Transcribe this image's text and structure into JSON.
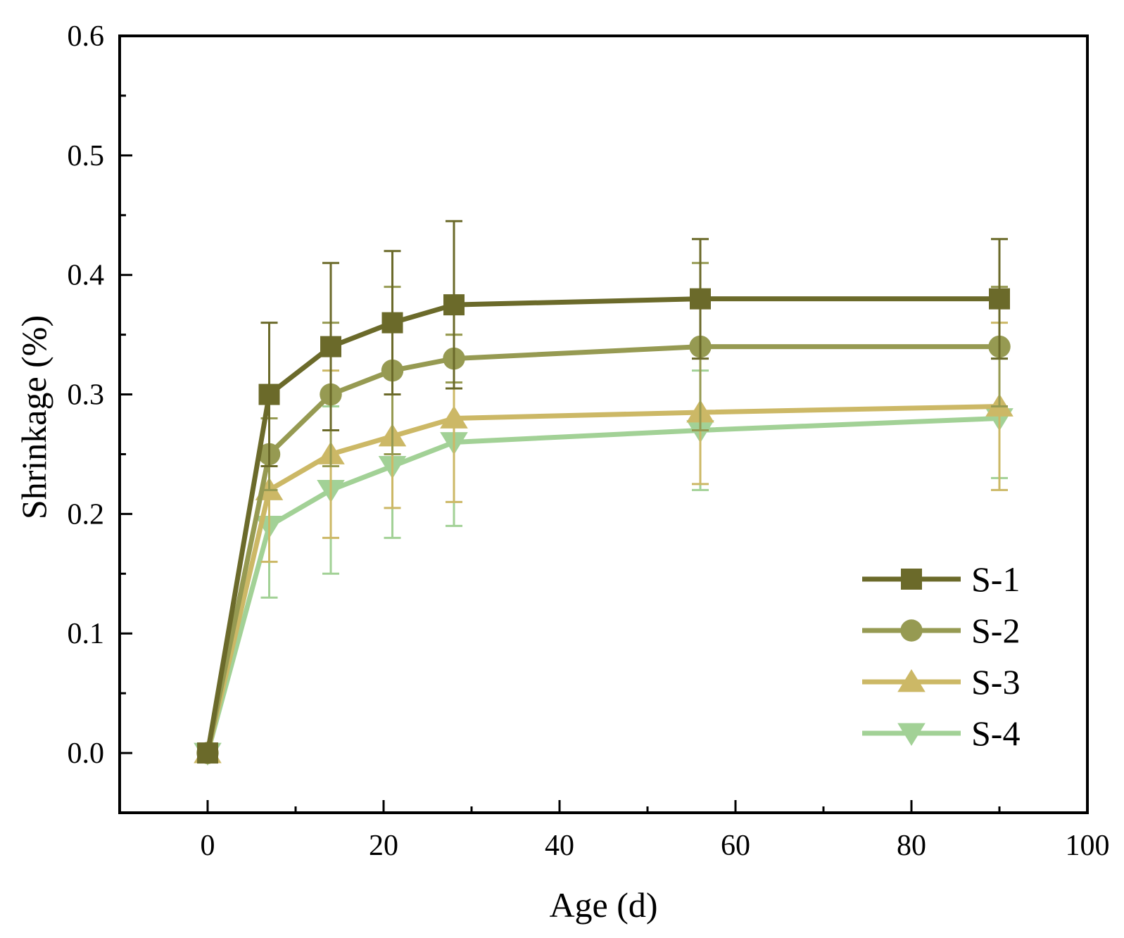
{
  "chart_data": {
    "type": "line",
    "xlabel": "Age (d)",
    "ylabel": "Shrinkage (%)",
    "xlim": [
      -10,
      100
    ],
    "ylim": [
      -0.05,
      0.6
    ],
    "xticks": [
      0,
      20,
      40,
      60,
      80,
      100
    ],
    "xtick_labels": [
      "0",
      "20",
      "40",
      "60",
      "80",
      "100"
    ],
    "yticks": [
      0.0,
      0.1,
      0.2,
      0.3,
      0.4,
      0.5,
      0.6
    ],
    "ytick_labels": [
      "0.0",
      "0.1",
      "0.2",
      "0.3",
      "0.4",
      "0.5",
      "0.6"
    ],
    "grid": false,
    "legend_position": "bottom-right",
    "x": [
      0,
      7,
      14,
      21,
      28,
      56,
      90
    ],
    "series": [
      {
        "name": "S-1",
        "color": "#6b6a2a",
        "marker": "square",
        "values": [
          0,
          0.3,
          0.34,
          0.36,
          0.375,
          0.38,
          0.38
        ],
        "error": [
          0.005,
          0.06,
          0.07,
          0.06,
          0.07,
          0.05,
          0.05
        ]
      },
      {
        "name": "S-2",
        "color": "#969a52",
        "marker": "circle",
        "values": [
          0,
          0.25,
          0.3,
          0.32,
          0.33,
          0.34,
          0.34
        ],
        "error": [
          0.005,
          0.03,
          0.06,
          0.07,
          0.02,
          0.07,
          0.05
        ]
      },
      {
        "name": "S-3",
        "color": "#ccb866",
        "marker": "triangle-up",
        "values": [
          0,
          0.22,
          0.25,
          0.265,
          0.28,
          0.285,
          0.29
        ],
        "error": [
          0.005,
          0.06,
          0.07,
          0.06,
          0.07,
          0.06,
          0.07
        ]
      },
      {
        "name": "S-4",
        "color": "#a2d196",
        "marker": "triangle-down",
        "values": [
          0,
          0.19,
          0.22,
          0.24,
          0.26,
          0.27,
          0.28
        ],
        "error": [
          0.005,
          0.06,
          0.07,
          0.06,
          0.07,
          0.05,
          0.05
        ]
      }
    ]
  }
}
